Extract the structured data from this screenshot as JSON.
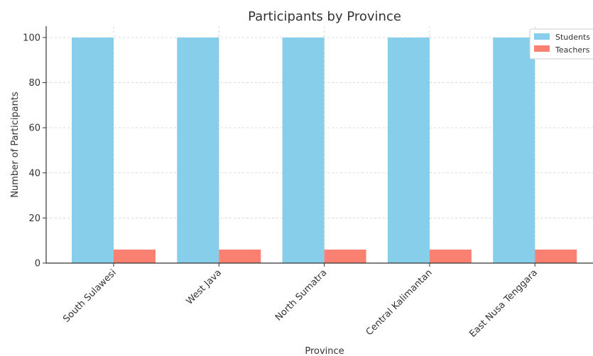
{
  "chart_data": {
    "type": "bar",
    "title": "Participants by Province",
    "xlabel": "Province",
    "ylabel": "Number of Participants",
    "categories": [
      "South Sulawesi",
      "West Java",
      "North Sumatra",
      "Central Kalimantan",
      "East Nusa Tenggara"
    ],
    "series": [
      {
        "name": "Students",
        "values": [
          100,
          100,
          100,
          100,
          100
        ],
        "color": "#87CEEB"
      },
      {
        "name": "Teachers",
        "values": [
          6,
          6,
          6,
          6,
          6
        ],
        "color": "#FA8072"
      }
    ],
    "ylim": [
      0,
      105
    ],
    "yticks": [
      0,
      20,
      40,
      60,
      80,
      100
    ],
    "grid": true,
    "legend_position": "top-right"
  }
}
